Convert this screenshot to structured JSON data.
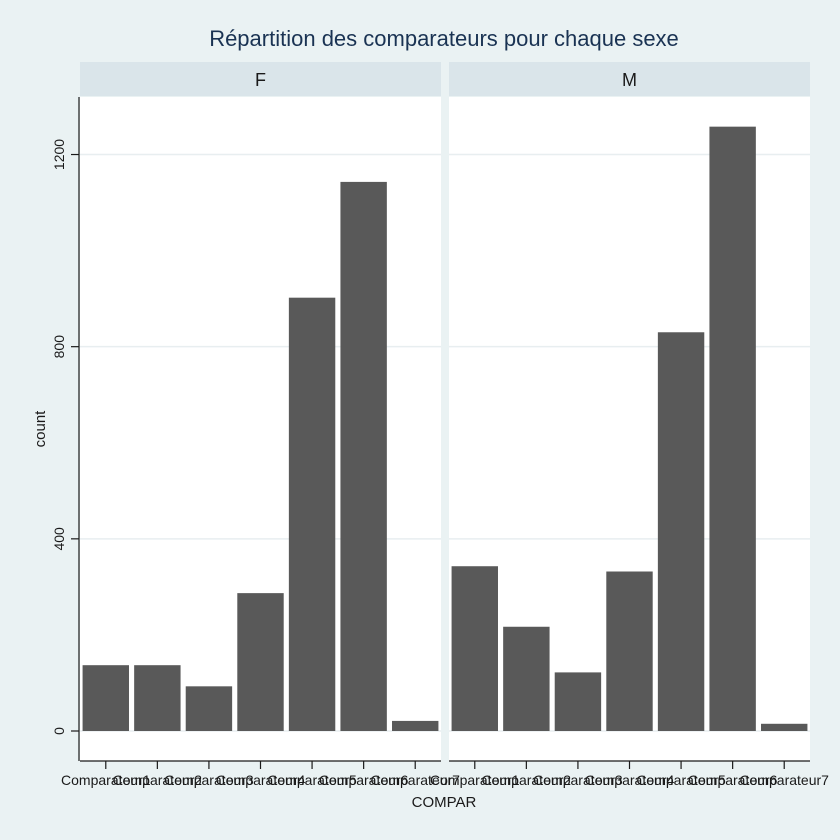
{
  "chart_data": {
    "type": "bar",
    "title": "Répartition des comparateurs pour chaque sexe",
    "xlabel": "COMPAR",
    "ylabel": "count",
    "ylim": [
      0,
      1310
    ],
    "yticks": [
      0,
      400,
      800,
      1200
    ],
    "grid": true,
    "bar_color": "#595959",
    "categories": [
      "Comparateur1",
      "Comparateur2",
      "Comparateur3",
      "Comparateur4",
      "Comparateur5",
      "Comparateur6",
      "Comparateur7"
    ],
    "panels": [
      {
        "name": "F",
        "values": [
          137,
          137,
          93,
          287,
          902,
          1143,
          21
        ]
      },
      {
        "name": "M",
        "values": [
          343,
          217,
          122,
          332,
          830,
          1258,
          15
        ]
      }
    ]
  }
}
